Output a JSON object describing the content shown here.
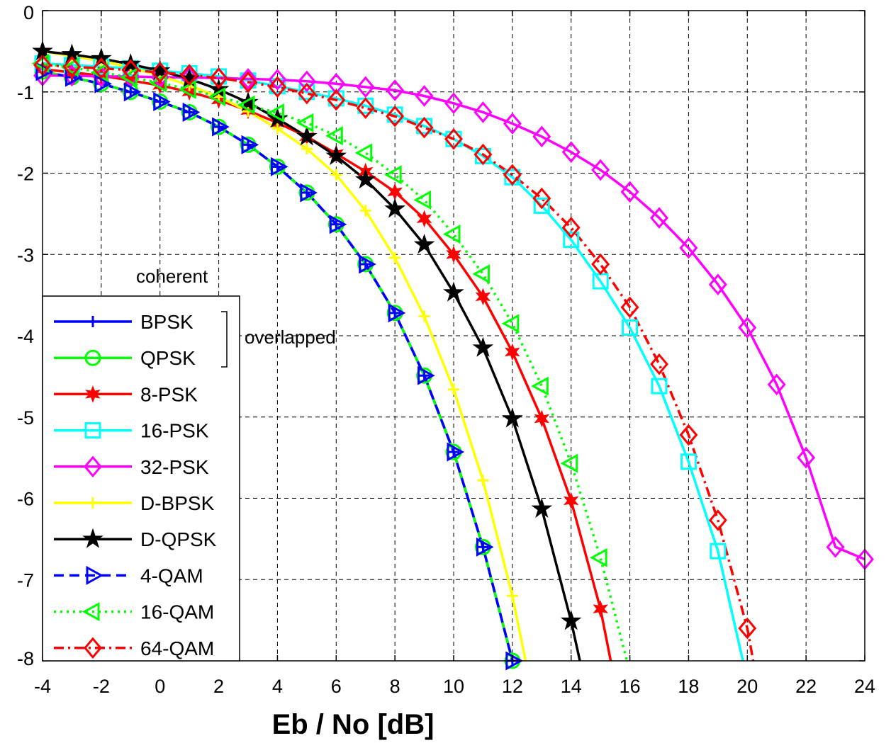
{
  "chart_data": {
    "type": "line",
    "title": "",
    "xlabel": "Eb / No [dB]",
    "ylabel": "",
    "xlim": [
      -4,
      24
    ],
    "ylim": [
      -8,
      0
    ],
    "xticks": [
      -4,
      -2,
      0,
      2,
      4,
      6,
      8,
      10,
      12,
      14,
      16,
      18,
      20,
      22,
      24
    ],
    "yticks": [
      0,
      -1,
      -2,
      -3,
      -4,
      -5,
      -6,
      -7,
      -8
    ],
    "xtick_labels": [
      "-4",
      "-2",
      "0",
      "2",
      "4",
      "6",
      "8",
      "10",
      "12",
      "14",
      "16",
      "18",
      "20",
      "22",
      "24"
    ],
    "ytick_labels": [
      "0",
      "-1",
      "-2",
      "-3",
      "-4",
      "-5",
      "-6",
      "-7",
      "-8"
    ],
    "grid": true,
    "legend_position": "bottom-left",
    "annotations": {
      "coherent": "coherent",
      "overlapped": "overlapped"
    },
    "series": [
      {
        "name": "BPSK",
        "color": "#0000ff",
        "dash": "solid",
        "marker": "plus",
        "x": [
          -4,
          -3,
          -2,
          -1,
          0,
          1,
          2,
          3,
          4,
          5,
          6,
          7,
          8,
          9,
          10,
          11,
          12
        ],
        "y": [
          -0.75,
          -0.82,
          -0.9,
          -1.0,
          -1.12,
          -1.25,
          -1.43,
          -1.65,
          -1.92,
          -2.24,
          -2.63,
          -3.12,
          -3.72,
          -4.49,
          -5.43,
          -6.6,
          -8.0
        ]
      },
      {
        "name": "QPSK",
        "color": "#00ff00",
        "dash": "solid",
        "marker": "circle",
        "x": [
          -4,
          -3,
          -2,
          -1,
          0,
          1,
          2,
          3,
          4,
          5,
          6,
          7,
          8,
          9,
          10,
          11,
          12
        ],
        "y": [
          -0.75,
          -0.82,
          -0.9,
          -1.0,
          -1.12,
          -1.25,
          -1.43,
          -1.65,
          -1.92,
          -2.24,
          -2.63,
          -3.12,
          -3.72,
          -4.49,
          -5.43,
          -6.6,
          -8.0
        ]
      },
      {
        "name": "8-PSK",
        "color": "#ff0000",
        "dash": "solid",
        "marker": "star6",
        "x": [
          -4,
          -3,
          -2,
          -1,
          0,
          1,
          2,
          3,
          4,
          5,
          6,
          7,
          8,
          9,
          10,
          11,
          12,
          13,
          14,
          15,
          15.35
        ],
        "y": [
          -0.72,
          -0.76,
          -0.8,
          -0.86,
          -0.92,
          -1.0,
          -1.1,
          -1.23,
          -1.38,
          -1.55,
          -1.76,
          -1.98,
          -2.23,
          -2.56,
          -3.0,
          -3.52,
          -4.2,
          -5.02,
          -6.03,
          -7.36,
          -8.0
        ]
      },
      {
        "name": "16-PSK",
        "color": "#00ffff",
        "dash": "solid",
        "marker": "square",
        "x": [
          -4,
          -3,
          -2,
          -1,
          0,
          1,
          2,
          3,
          4,
          5,
          6,
          7,
          8,
          9,
          10,
          11,
          12,
          13,
          14,
          15,
          16,
          17,
          18,
          19,
          19.85
        ],
        "y": [
          -0.65,
          -0.67,
          -0.69,
          -0.71,
          -0.74,
          -0.77,
          -0.81,
          -0.86,
          -0.93,
          -1.0,
          -1.08,
          -1.17,
          -1.28,
          -1.42,
          -1.58,
          -1.79,
          -2.05,
          -2.4,
          -2.82,
          -3.33,
          -3.9,
          -4.62,
          -5.55,
          -6.65,
          -8.0
        ]
      },
      {
        "name": "32-PSK",
        "color": "#ff00ff",
        "dash": "solid",
        "marker": "diamond",
        "x": [
          -4,
          -3,
          -2,
          -1,
          0,
          1,
          2,
          3,
          4,
          5,
          6,
          7,
          8,
          9,
          10,
          11,
          12,
          13,
          14,
          15,
          16,
          17,
          18,
          19,
          20,
          21,
          22,
          23,
          24
        ],
        "y": [
          -0.8,
          -0.8,
          -0.81,
          -0.81,
          -0.82,
          -0.82,
          -0.83,
          -0.84,
          -0.85,
          -0.87,
          -0.9,
          -0.94,
          -0.98,
          -1.05,
          -1.14,
          -1.25,
          -1.39,
          -1.55,
          -1.74,
          -1.96,
          -2.23,
          -2.55,
          -2.92,
          -3.37,
          -3.9,
          -4.6,
          -5.5,
          -6.6,
          -6.75
        ]
      },
      {
        "name": "D-BPSK",
        "color": "#ffff00",
        "dash": "solid",
        "marker": "plus",
        "x": [
          -4,
          -3,
          -2,
          -1,
          0,
          1,
          2,
          3,
          4,
          5,
          6,
          7,
          8,
          9,
          10,
          11,
          12,
          12.45
        ],
        "y": [
          -0.5,
          -0.56,
          -0.62,
          -0.7,
          -0.8,
          -0.92,
          -1.06,
          -1.24,
          -1.45,
          -1.7,
          -2.02,
          -2.46,
          -3.04,
          -3.76,
          -4.66,
          -5.78,
          -7.2,
          -8.0
        ]
      },
      {
        "name": "D-QPSK",
        "color": "#000000",
        "dash": "solid",
        "marker": "star5",
        "x": [
          -4,
          -3,
          -2,
          -1,
          0,
          1,
          2,
          3,
          4,
          5,
          6,
          7,
          8,
          9,
          10,
          11,
          12,
          13,
          14,
          14.3
        ],
        "y": [
          -0.5,
          -0.54,
          -0.59,
          -0.66,
          -0.74,
          -0.84,
          -0.97,
          -1.13,
          -1.33,
          -1.55,
          -1.79,
          -2.08,
          -2.44,
          -2.88,
          -3.47,
          -4.15,
          -5.02,
          -6.13,
          -7.51,
          -8.0
        ]
      },
      {
        "name": "4-QAM",
        "color": "#0000ff",
        "dash": "dashed",
        "marker": "tri-right",
        "x": [
          -4,
          -3,
          -2,
          -1,
          0,
          1,
          2,
          3,
          4,
          5,
          6,
          7,
          8,
          9,
          10,
          11,
          12
        ],
        "y": [
          -0.75,
          -0.82,
          -0.9,
          -1.0,
          -1.12,
          -1.25,
          -1.43,
          -1.65,
          -1.92,
          -2.24,
          -2.63,
          -3.12,
          -3.72,
          -4.49,
          -5.43,
          -6.6,
          -8.0
        ]
      },
      {
        "name": "16-QAM",
        "color": "#00ff00",
        "dash": "dotted",
        "marker": "tri-left",
        "x": [
          -4,
          -3,
          -2,
          -1,
          0,
          1,
          2,
          3,
          4,
          5,
          6,
          7,
          8,
          9,
          10,
          11,
          12,
          13,
          14,
          15,
          15.9
        ],
        "y": [
          -0.65,
          -0.7,
          -0.76,
          -0.82,
          -0.89,
          -0.97,
          -1.06,
          -1.16,
          -1.26,
          -1.38,
          -1.54,
          -1.75,
          -2.02,
          -2.33,
          -2.75,
          -3.24,
          -3.85,
          -4.62,
          -5.57,
          -6.73,
          -8.0
        ]
      },
      {
        "name": "64-QAM",
        "color": "#ff0000",
        "dash": "dashdot",
        "marker": "diamond",
        "x": [
          -4,
          -3,
          -2,
          -1,
          0,
          1,
          2,
          3,
          4,
          5,
          6,
          7,
          8,
          9,
          10,
          11,
          12,
          13,
          14,
          15,
          16,
          17,
          18,
          19,
          20,
          20.2
        ],
        "y": [
          -0.67,
          -0.69,
          -0.71,
          -0.73,
          -0.76,
          -0.79,
          -0.83,
          -0.88,
          -0.94,
          -1.02,
          -1.1,
          -1.2,
          -1.3,
          -1.44,
          -1.58,
          -1.77,
          -2.02,
          -2.31,
          -2.67,
          -3.12,
          -3.65,
          -4.35,
          -5.22,
          -6.27,
          -7.6,
          -8.0
        ]
      }
    ]
  }
}
